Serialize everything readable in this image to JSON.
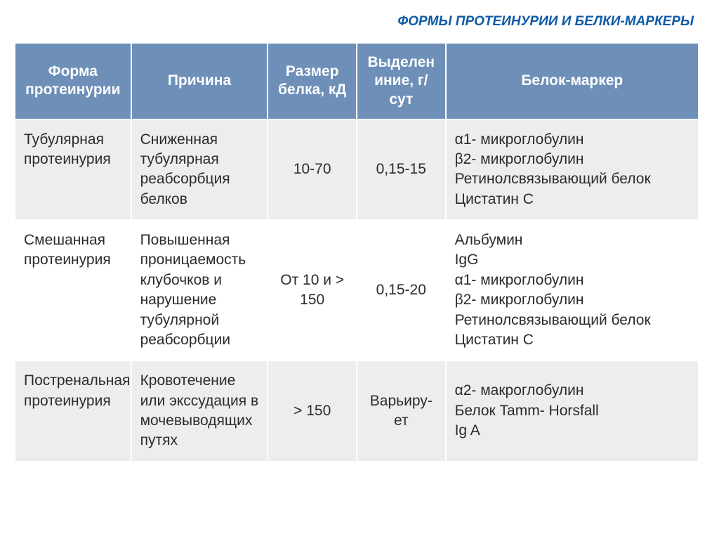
{
  "title": "ФОРМЫ ПРОТЕИНУРИИ И БЕЛКИ-МАРКЕРЫ",
  "columns": {
    "c0": "Форма протеинурии",
    "c1": "Причина",
    "c2": "Размер белка, кД",
    "c3": "Выделен иние, г/сут",
    "c4": "Белок-маркер"
  },
  "rows": {
    "r0": {
      "form": "Тубулярная протеинурия",
      "cause": "Сниженная тубулярная реабсорбция белков",
      "size": "10-70",
      "excretion": "0,15-15",
      "marker": "α1-  микроглобулин\nβ2-   микроглобулин\nРетинолсвязывающий белок\nЦистатин С"
    },
    "r1": {
      "form": "Смешанная протеинурия",
      "cause": "Повышенная проницаемость клубочков и нарушение тубулярной реабсорбции",
      "size": "От 10 и > 150",
      "excretion": "0,15-20",
      "marker": "Альбумин\nIgG\n α1-  микроглобулин\nβ2-   микроглобулин\nРетинолсвязывающий белок\nЦистатин С"
    },
    "r2": {
      "form": "Постренальная протеинурия",
      "cause": "Кровотечение или экссудация в мочевыводящих путях",
      "size": "> 150",
      "excretion": "Варьиру-ет",
      "marker": "α2- макроглобулин\nБелок  Tamm- Horsfall\nIg A"
    }
  },
  "styling": {
    "header_bg": "#6d8fb8",
    "header_fg": "#ffffff",
    "title_color": "#0d5aa7",
    "row_shade_bg": "#ecedef",
    "row_plain_bg": "#ffffff",
    "text_color": "#2b2b2b",
    "font_family": "Arial",
    "header_fontsize": 21,
    "body_fontsize": 21,
    "title_fontsize": 19,
    "column_widths_pct": [
      17,
      20,
      13,
      13,
      37
    ]
  }
}
